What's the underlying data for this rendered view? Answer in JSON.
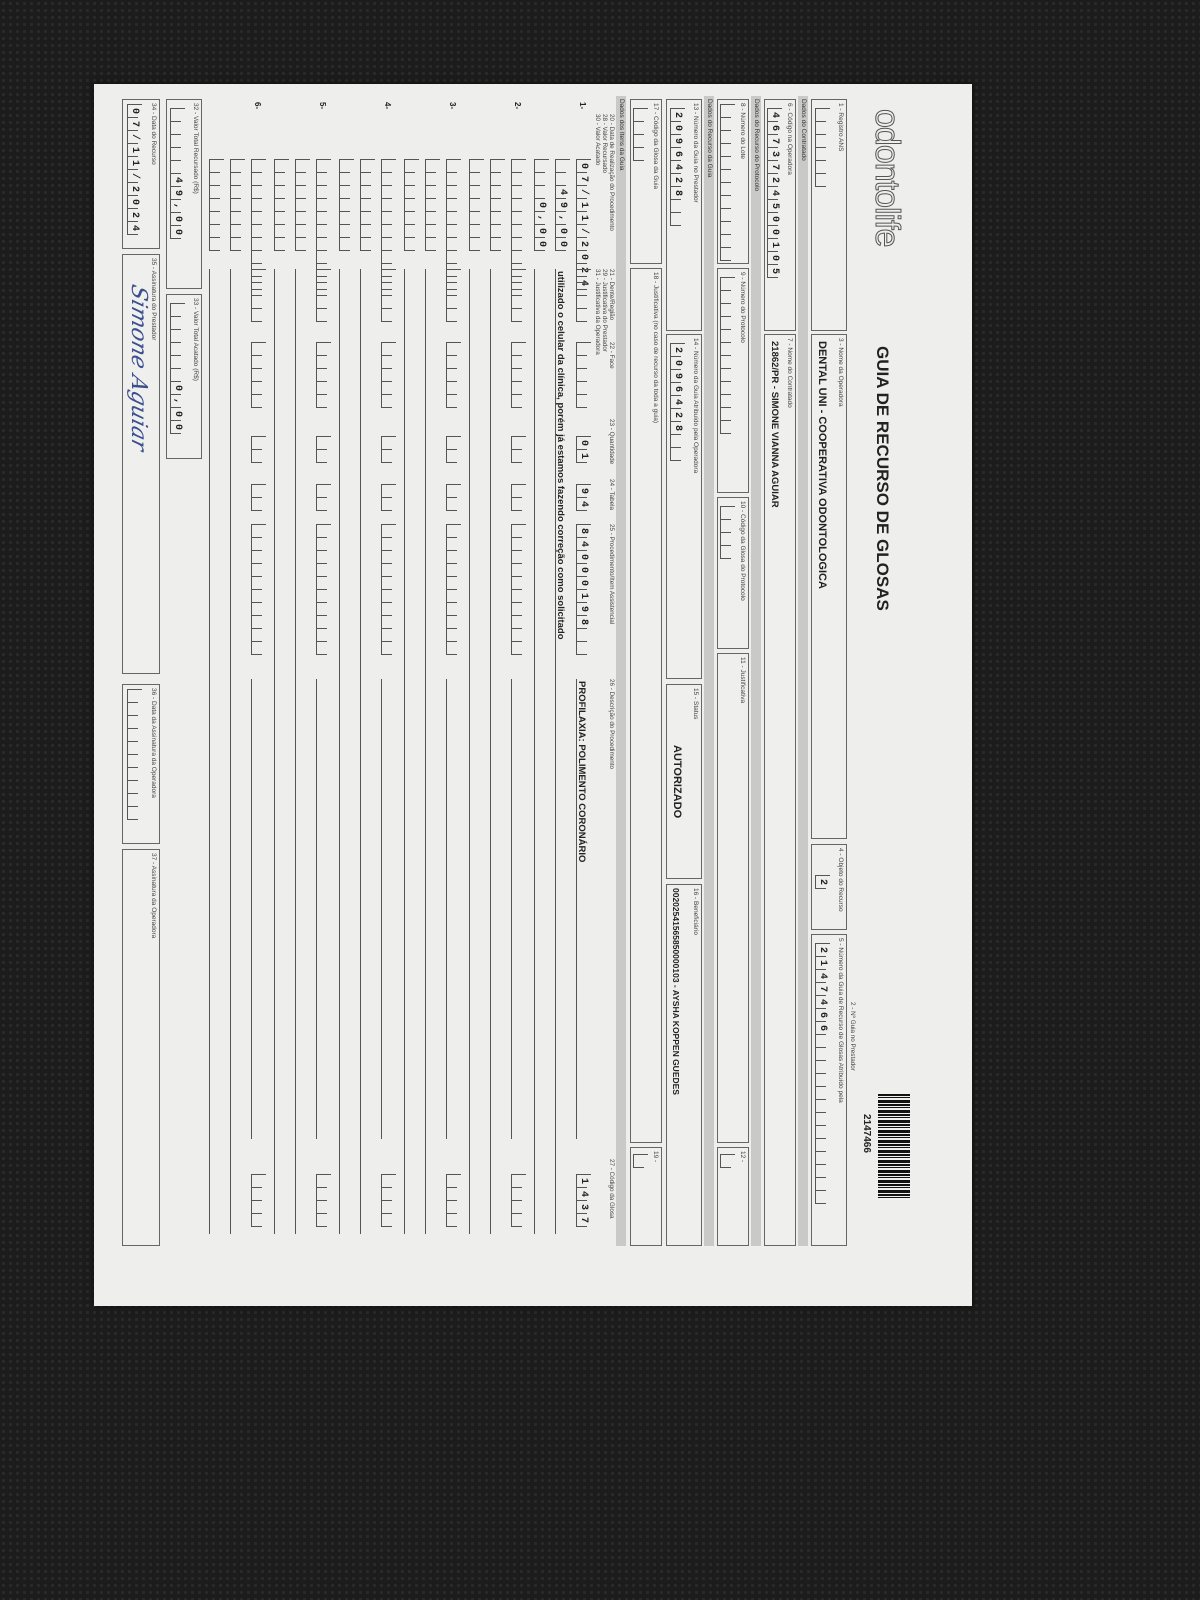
{
  "header": {
    "logo": "odontolife",
    "title": "GUIA DE RECURSO DE GLOSAS",
    "guia_prestador_label": "2 - Nº Guia no Prestador",
    "guia_prestador_value": "2147466"
  },
  "operadora": {
    "registro_ans_label": "1 - Registro ANS",
    "registro_ans_value": "",
    "nome_label": "3 - Nome da Operadora",
    "nome_value": "DENTAL UNI - COOPERATIVA ODONTOLOGICA",
    "objeto_label": "4 - Objeto do Recurso",
    "objeto_value": "2",
    "numero_guia_label": "5 - Número da Guia de Recurso de Glosas Atribuído pela",
    "numero_guia_value": "2147466"
  },
  "contratado": {
    "section": "Dados do Contratado",
    "codigo_label": "6 - Código na Operadora",
    "codigo_value": "4673724500105",
    "nome_label": "7 - Nome do Contratado",
    "nome_value": "21862/PR - SIMONE VIANNA AGUIAR"
  },
  "protocolo": {
    "section": "Dados do Recurso do Protocolo",
    "lote_label": "8 - Número do Lote",
    "protocolo_label": "9 - Número do Protocolo",
    "glosa_label": "10 - Código da Glosa do Protocolo",
    "justificativa_label": "11 - Justificativa",
    "campo12_label": "12 -"
  },
  "guia": {
    "section": "Dados do Recurso da Guia",
    "guia_prestador_label": "13 - Número da Guia no Prestador",
    "guia_prestador_value": "2096428",
    "guia_operadora_label": "14 - Número da Guia Atribuído pela Operadora",
    "guia_operadora_value": "2096428",
    "status_label": "15 - Status",
    "status_value": "AUTORIZADO",
    "beneficiario_label": "16 - Beneficiário",
    "beneficiario_value": "00202541565850000103 - AYSHA KOPPEN GUEDES",
    "glosa_label": "17 - Código da Glosa da Guia",
    "justificativa_label": "18 - Justificativa (no caso de recurso da toda a guia)",
    "campo19_label": "19 -"
  },
  "itens": {
    "section": "Dados dos Itens da Guia",
    "headers": {
      "c20": "20 - Data de Realização do Procedimento",
      "c28": "28 - Valor Recursado",
      "c30": "30 - Valor Acatado",
      "c21": "21 - Dente/Região",
      "c29": "29 - Justificativa do Prestador",
      "c31": "31 - Justificativa da Operadora",
      "c22": "22 - Face",
      "c23": "23 - Quantidade",
      "c24": "24 - Tabela",
      "c25": "25 - Procedimento/Item Assistencial",
      "c26": "26 - Descrição do Procedimento",
      "c27": "27 - Código da Glosa"
    },
    "rows": [
      {
        "marker": "1-",
        "data": "07/11/2024",
        "dente": "",
        "face": "",
        "quantidade": "01",
        "tabela": "94",
        "procedimento": "84000198",
        "descricao": "PROFILAXIA: POLIMENTO CORONÁRIO",
        "glosa": "1437",
        "valor_recursado": "49,00",
        "justificativa_prestador": "utilizado o celular da clínica, porém já estamos fazendo correção como solicitado",
        "valor_acatado": "0,00"
      },
      {
        "marker": "2-",
        "data": "",
        "dente": "",
        "face": "",
        "quantidade": "",
        "tabela": "",
        "procedimento": "",
        "descricao": "",
        "glosa": "",
        "valor_recursado": "",
        "justificativa_prestador": "",
        "valor_acatado": ""
      },
      {
        "marker": "3-",
        "data": "",
        "dente": "",
        "face": "",
        "quantidade": "",
        "tabela": "",
        "procedimento": "",
        "descricao": "",
        "glosa": "",
        "valor_recursado": "",
        "justificativa_prestador": "",
        "valor_acatado": ""
      },
      {
        "marker": "4-",
        "data": "",
        "dente": "",
        "face": "",
        "quantidade": "",
        "tabela": "",
        "procedimento": "",
        "descricao": "",
        "glosa": "",
        "valor_recursado": "",
        "justificativa_prestador": "",
        "valor_acatado": ""
      },
      {
        "marker": "5-",
        "data": "",
        "dente": "",
        "face": "",
        "quantidade": "",
        "tabela": "",
        "procedimento": "",
        "descricao": "",
        "glosa": "",
        "valor_recursado": "",
        "justificativa_prestador": "",
        "valor_acatado": ""
      },
      {
        "marker": "6-",
        "data": "",
        "dente": "",
        "face": "",
        "quantidade": "",
        "tabela": "",
        "procedimento": "",
        "descricao": "",
        "glosa": "",
        "valor_recursado": "",
        "justificativa_prestador": "",
        "valor_acatado": ""
      }
    ]
  },
  "totais": {
    "recursado_label": "32 - Valor Total Recursado (R$)",
    "recursado_value": "49,00",
    "acatado_label": "33 - Valor Total Acatado (R$)",
    "acatado_value": "0,00",
    "data_recurso_label": "34 - Data do Recurso",
    "data_recurso_value": "07/11/2024",
    "assinatura_prestador_label": "35 - Assinatura do Prestador",
    "assinatura_prestador_signature": "Simone Aguiar",
    "data_assinatura_operadora_label": "36 - Data da Assinatura da Operadora",
    "assinatura_operadora_label": "37 - Assinatura da Operadora"
  }
}
